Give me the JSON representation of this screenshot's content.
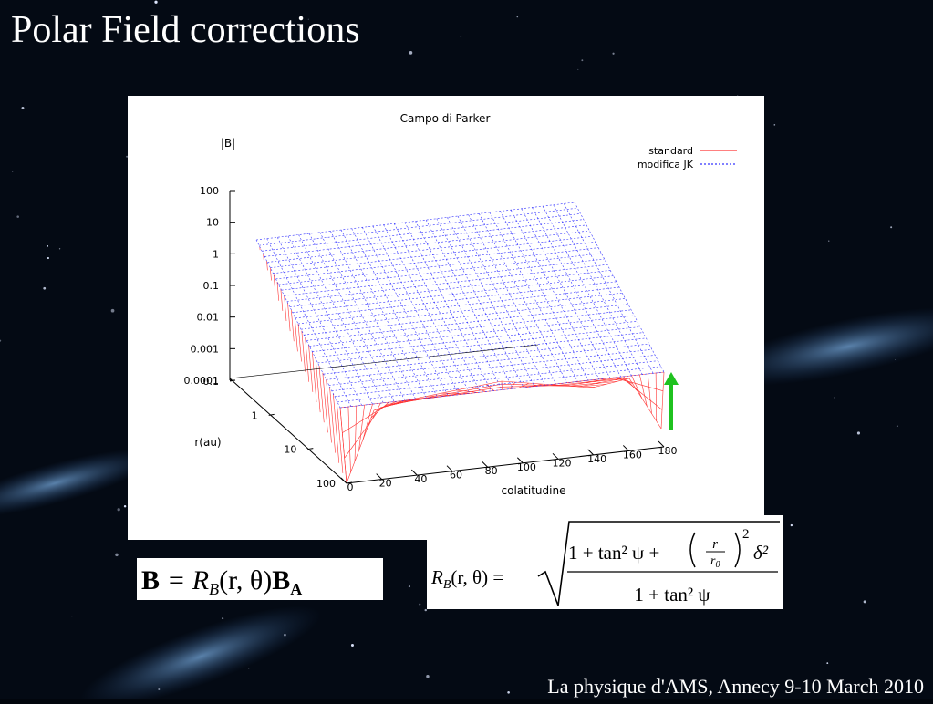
{
  "title": "Polar Field corrections",
  "plot": {
    "title": "Campo di Parker",
    "z_label": "|B|",
    "z_ticks": [
      "100",
      "10",
      "1",
      "0.1",
      "0.01",
      "0.001",
      "0.0001"
    ],
    "r_label": "r(au)",
    "r_ticks": [
      "0.1",
      "1",
      "10",
      "100"
    ],
    "x_label": "colatitudine",
    "x_ticks": [
      "0",
      "20",
      "40",
      "60",
      "80",
      "100",
      "120",
      "140",
      "160",
      "180"
    ],
    "legend": [
      "standard",
      "modifica JK"
    ]
  },
  "formula_1": {
    "b1": "B",
    "eq": "= R",
    "sub": "B",
    "args": "(r, θ)",
    "b2": "B",
    "b2sub": "A"
  },
  "formula_2": {
    "lhs": "R",
    "lhs_sub": "B",
    "lhs_rest": "(r, θ) =",
    "numerator": "1 + tan² ψ +",
    "frac_num": "r",
    "frac_den": "r",
    "frac_den_sub": "0",
    "exponent": "2",
    "tail": "δ²",
    "denominator": "1 + tan² ψ"
  },
  "footer": "La physique d'AMS, Annecy 9-10 March 2010"
}
